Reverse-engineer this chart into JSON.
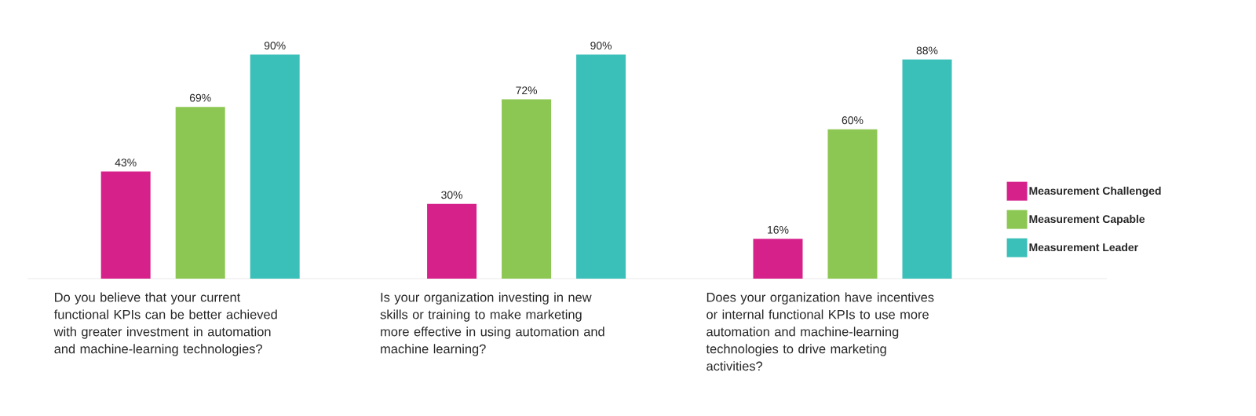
{
  "chart_data": {
    "type": "bar",
    "categories": [
      "Do you believe that your current functional KPIs can be better achieved with greater investment in automation and machine-learning technologies?",
      "Is your organization investing in new skills or training to make marketing more effective in using automation and machine learning?",
      "Does your organization have incentives or internal functional KPIs to use more automation and machine-learning technologies to drive marketing activities?"
    ],
    "series": [
      {
        "name": "Measurement Challenged",
        "color": "#d6218b",
        "values": [
          43,
          30,
          16
        ],
        "value_labels": [
          "43%",
          "30%",
          "16%"
        ]
      },
      {
        "name": "Measurement Capable",
        "color": "#8dc753",
        "values": [
          69,
          72,
          60
        ],
        "value_labels": [
          "69%",
          "72%",
          "60%"
        ]
      },
      {
        "name": "Measurement Leader",
        "color": "#3abfb9",
        "values": [
          90,
          90,
          88
        ],
        "value_labels": [
          "90%",
          "90%",
          "88%"
        ]
      }
    ],
    "legend": "right"
  }
}
